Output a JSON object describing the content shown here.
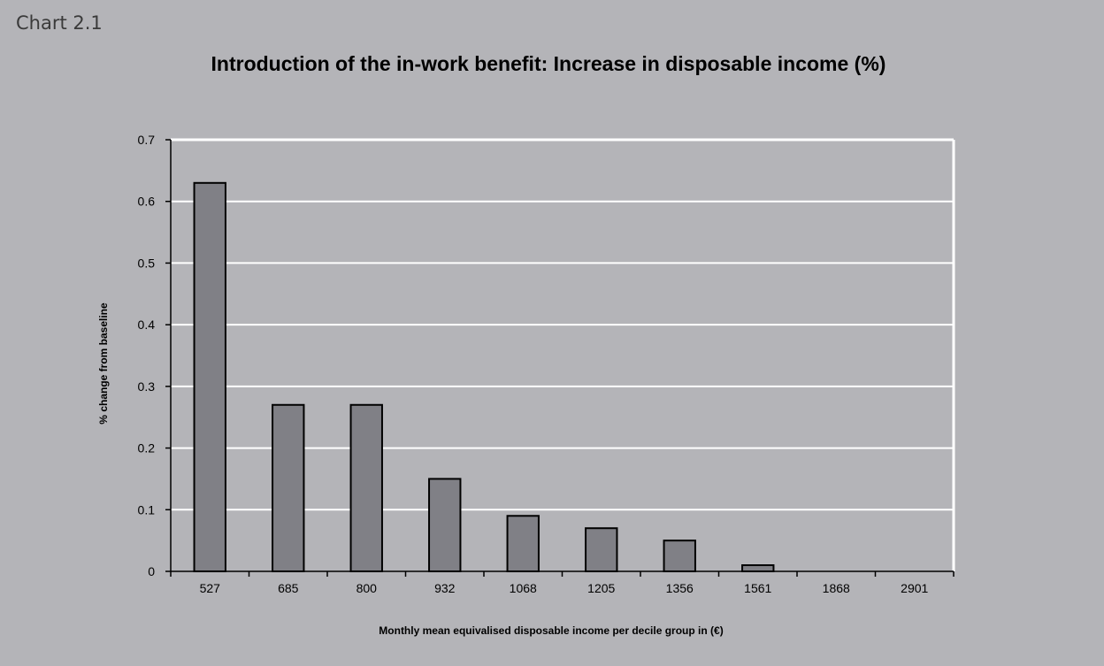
{
  "figure_label": "Chart 2.1",
  "chart_data": {
    "type": "bar",
    "title": "Introduction of the in-work benefit: Increase in disposable income (%)",
    "xlabel": "Monthly mean equivalised disposable income per decile group in (€)",
    "ylabel": "% change from baseline",
    "categories": [
      "527",
      "685",
      "800",
      "932",
      "1068",
      "1205",
      "1356",
      "1561",
      "1868",
      "2901"
    ],
    "values": [
      0.63,
      0.27,
      0.27,
      0.15,
      0.09,
      0.07,
      0.05,
      0.01,
      0,
      0
    ],
    "ylim": [
      0,
      0.7
    ],
    "yticks": [
      "0",
      "0.1",
      "0.2",
      "0.3",
      "0.4",
      "0.5",
      "0.6",
      "0.7"
    ],
    "grid": true,
    "colors": {
      "bar": "#808086",
      "bar_stroke": "#000000",
      "plot_area": "#b4b4b8",
      "grid": "#ffffff"
    }
  }
}
